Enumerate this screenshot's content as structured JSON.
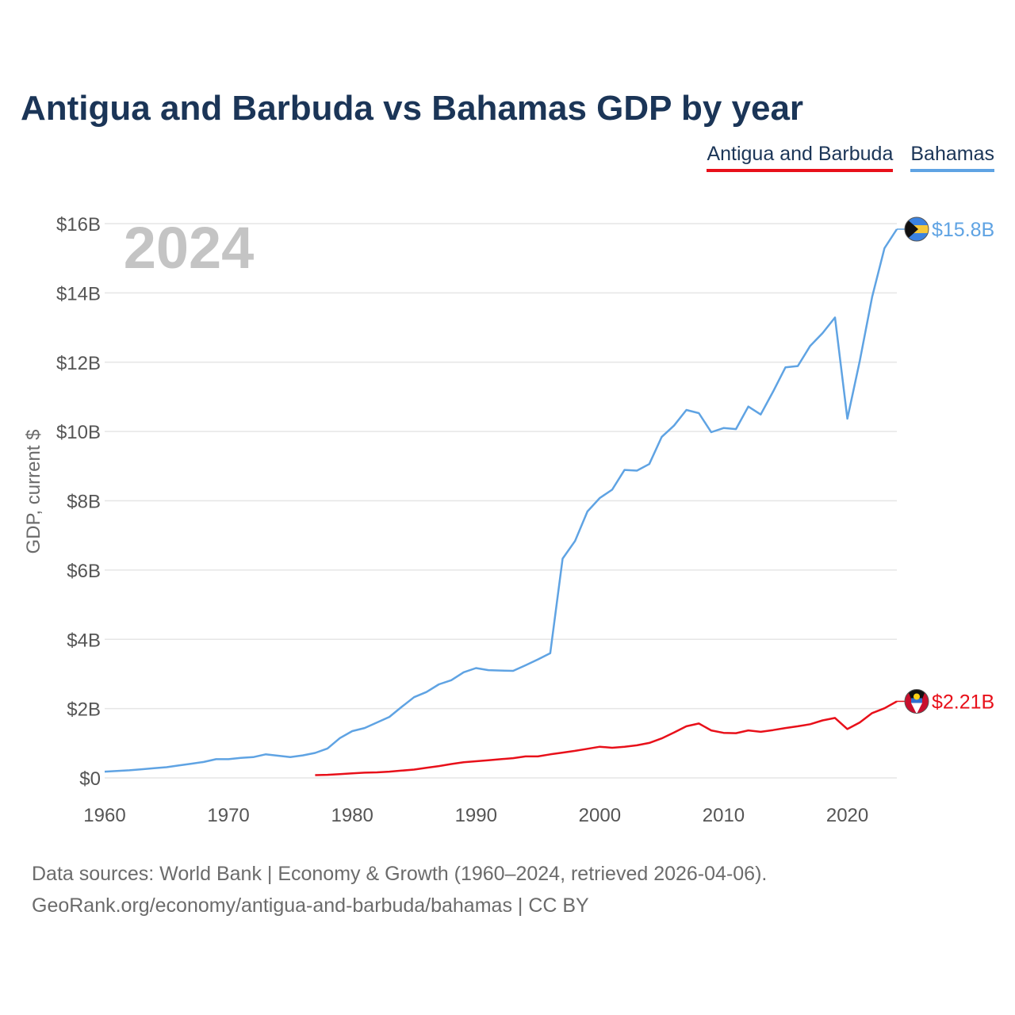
{
  "title": "Antigua and Barbuda vs Bahamas GDP by year",
  "legend": [
    {
      "label": "Antigua and Barbuda",
      "color": "#e8101a"
    },
    {
      "label": "Bahamas",
      "color": "#5fa3e3"
    }
  ],
  "year_watermark": "2024",
  "footer": {
    "line1": "Data sources: World Bank | Economy & Growth (1960–2024, retrieved 2026-04-06).",
    "line2": "GeoRank.org/economy/antigua-and-barbuda/bahamas | CC BY"
  },
  "chart_data": {
    "type": "line",
    "title": "Antigua and Barbuda vs Bahamas GDP by year",
    "xlabel": "",
    "ylabel": "GDP, current $",
    "xlim": [
      1960,
      2024
    ],
    "ylim": [
      0,
      16
    ],
    "units": "billions USD",
    "grid": true,
    "xticks": [
      1960,
      1970,
      1980,
      1990,
      2000,
      2010,
      2020
    ],
    "xtick_labels": [
      "1960",
      "1970",
      "1980",
      "1990",
      "2000",
      "2010",
      "2020"
    ],
    "yticks": [
      0,
      2,
      4,
      6,
      8,
      10,
      12,
      14,
      16
    ],
    "ytick_labels": [
      "$0",
      "$2B",
      "$4B",
      "$6B",
      "$8B",
      "$10B",
      "$12B",
      "$14B",
      "$16B"
    ],
    "series": [
      {
        "name": "Bahamas",
        "color": "#5fa3e3",
        "end_label": "$15.8B",
        "x": [
          1960,
          1961,
          1962,
          1963,
          1964,
          1965,
          1966,
          1967,
          1968,
          1969,
          1970,
          1971,
          1972,
          1973,
          1974,
          1975,
          1976,
          1977,
          1978,
          1979,
          1980,
          1981,
          1982,
          1983,
          1984,
          1985,
          1986,
          1987,
          1988,
          1989,
          1990,
          1991,
          1992,
          1993,
          1994,
          1995,
          1996,
          1997,
          1998,
          1999,
          2000,
          2001,
          2002,
          2003,
          2004,
          2005,
          2006,
          2007,
          2008,
          2009,
          2010,
          2011,
          2012,
          2013,
          2014,
          2015,
          2016,
          2017,
          2018,
          2019,
          2020,
          2021,
          2022,
          2023,
          2024
        ],
        "values": [
          0.18,
          0.2,
          0.22,
          0.25,
          0.28,
          0.31,
          0.36,
          0.41,
          0.46,
          0.54,
          0.54,
          0.58,
          0.6,
          0.68,
          0.64,
          0.6,
          0.65,
          0.72,
          0.85,
          1.15,
          1.35,
          1.44,
          1.6,
          1.76,
          2.05,
          2.33,
          2.48,
          2.7,
          2.82,
          3.05,
          3.17,
          3.11,
          3.1,
          3.09,
          3.25,
          3.42,
          3.6,
          6.33,
          6.84,
          7.69,
          8.08,
          8.32,
          8.89,
          8.87,
          9.06,
          9.84,
          10.17,
          10.62,
          10.53,
          9.98,
          10.1,
          10.07,
          10.72,
          10.49,
          11.15,
          11.85,
          11.89,
          12.47,
          12.84,
          13.29,
          10.37,
          12.03,
          13.88,
          15.29,
          15.84
        ]
      },
      {
        "name": "Antigua and Barbuda",
        "color": "#e8101a",
        "end_label": "$2.21B",
        "x": [
          1977,
          1978,
          1979,
          1980,
          1981,
          1982,
          1983,
          1984,
          1985,
          1986,
          1987,
          1988,
          1989,
          1990,
          1991,
          1992,
          1993,
          1994,
          1995,
          1996,
          1997,
          1998,
          1999,
          2000,
          2001,
          2002,
          2003,
          2004,
          2005,
          2006,
          2007,
          2008,
          2009,
          2010,
          2011,
          2012,
          2013,
          2014,
          2015,
          2016,
          2017,
          2018,
          2019,
          2020,
          2021,
          2022,
          2023,
          2024
        ],
        "values": [
          0.08,
          0.09,
          0.11,
          0.13,
          0.15,
          0.16,
          0.18,
          0.21,
          0.24,
          0.29,
          0.34,
          0.4,
          0.45,
          0.48,
          0.51,
          0.54,
          0.57,
          0.62,
          0.62,
          0.68,
          0.73,
          0.78,
          0.84,
          0.9,
          0.87,
          0.9,
          0.94,
          1.01,
          1.14,
          1.31,
          1.49,
          1.57,
          1.37,
          1.3,
          1.29,
          1.37,
          1.33,
          1.38,
          1.44,
          1.49,
          1.55,
          1.66,
          1.73,
          1.41,
          1.6,
          1.87,
          2.01,
          2.21
        ]
      }
    ]
  }
}
